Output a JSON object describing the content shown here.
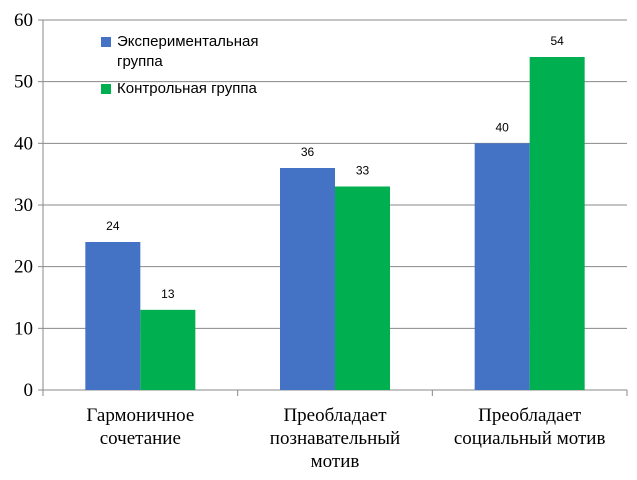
{
  "chart_data": {
    "type": "bar",
    "categories": [
      [
        "Гармоничное",
        "сочетание"
      ],
      [
        "Преобладает",
        "познавательный",
        "мотив"
      ],
      [
        "Преобладает",
        "социальный мотив"
      ]
    ],
    "series": [
      {
        "name": [
          "Экспериментальная",
          "группа"
        ],
        "color": "#4472C4",
        "values": [
          24,
          36,
          40
        ]
      },
      {
        "name": [
          "Контрольная группа"
        ],
        "color": "#00B050",
        "values": [
          13,
          33,
          54
        ]
      }
    ],
    "yticks": [
      0,
      10,
      20,
      30,
      40,
      50,
      60
    ],
    "ylim": [
      0,
      60
    ],
    "grid": true,
    "legend_position": "top-left",
    "data_labels": true
  }
}
